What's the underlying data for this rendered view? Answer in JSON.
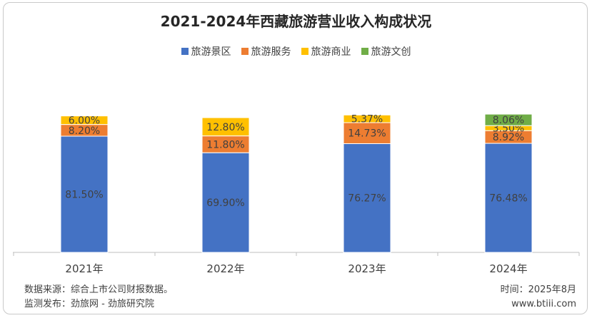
{
  "chart_data": {
    "type": "bar",
    "stacked": true,
    "title": "2021-2024年西藏旅游营业收入构成状况",
    "categories": [
      "2021年",
      "2022年",
      "2023年",
      "2024年"
    ],
    "series": [
      {
        "name": "旅游景区",
        "color": "#4472C4",
        "values": [
          81.5,
          69.9,
          76.27,
          76.48
        ],
        "labels": [
          "81.50%",
          "69.90%",
          "76.27%",
          "76.48%"
        ]
      },
      {
        "name": "旅游服务",
        "color": "#ED7D31",
        "values": [
          8.2,
          11.8,
          14.73,
          8.92
        ],
        "labels": [
          "8.20%",
          "11.80%",
          "14.73%",
          "8.92%"
        ]
      },
      {
        "name": "旅游商业",
        "color": "#FFC000",
        "values": [
          6.0,
          12.8,
          5.37,
          3.5
        ],
        "labels": [
          "6.00%",
          "12.80%",
          "5.37%",
          "3.50%"
        ]
      },
      {
        "name": "旅游文创",
        "color": "#70AD47",
        "values": [
          0,
          0,
          0,
          8.06
        ],
        "labels": [
          "",
          "",
          "",
          "8.06%"
        ]
      }
    ],
    "legend_position": "top",
    "grid": false,
    "ylim": [
      0,
      100
    ]
  },
  "footer": {
    "source": "数据来源：综合上市公司财报数据。",
    "publisher": "监测发布：劲旅网 - 劲旅研究院",
    "time": "时间：2025年8月",
    "url": "www.btiii.com"
  }
}
